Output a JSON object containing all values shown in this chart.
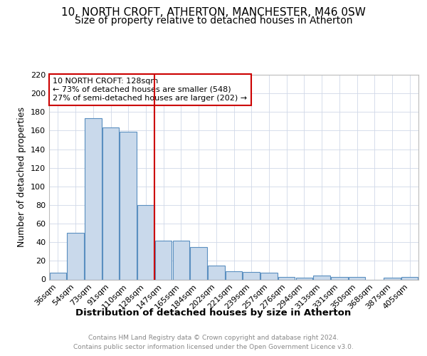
{
  "title": "10, NORTH CROFT, ATHERTON, MANCHESTER, M46 0SW",
  "subtitle": "Size of property relative to detached houses in Atherton",
  "xlabel": "Distribution of detached houses by size in Atherton",
  "ylabel": "Number of detached properties",
  "categories": [
    "36sqm",
    "54sqm",
    "73sqm",
    "91sqm",
    "110sqm",
    "128sqm",
    "147sqm",
    "165sqm",
    "184sqm",
    "202sqm",
    "221sqm",
    "239sqm",
    "257sqm",
    "276sqm",
    "294sqm",
    "313sqm",
    "331sqm",
    "350sqm",
    "368sqm",
    "387sqm",
    "405sqm"
  ],
  "values": [
    7,
    50,
    173,
    163,
    159,
    80,
    42,
    42,
    35,
    15,
    9,
    8,
    7,
    3,
    2,
    4,
    3,
    3,
    0,
    2,
    3
  ],
  "bar_color": "#c9d9eb",
  "bar_edge_color": "#5a8fc0",
  "vline_x_index": 5,
  "vline_color": "#cc0000",
  "annotation_text": "10 NORTH CROFT: 128sqm\n← 73% of detached houses are smaller (548)\n27% of semi-detached houses are larger (202) →",
  "annotation_box_color": "#cc0000",
  "ylim": [
    0,
    220
  ],
  "yticks": [
    0,
    20,
    40,
    60,
    80,
    100,
    120,
    140,
    160,
    180,
    200,
    220
  ],
  "grid_color": "#d0d8e8",
  "title_fontsize": 11,
  "subtitle_fontsize": 10,
  "xlabel_fontsize": 9.5,
  "ylabel_fontsize": 9,
  "tick_fontsize": 8,
  "annotation_fontsize": 8,
  "footer_line1": "Contains HM Land Registry data © Crown copyright and database right 2024.",
  "footer_line2": "Contains public sector information licensed under the Open Government Licence v3.0.",
  "footer_fontsize": 6.5,
  "footer_color": "#888888"
}
